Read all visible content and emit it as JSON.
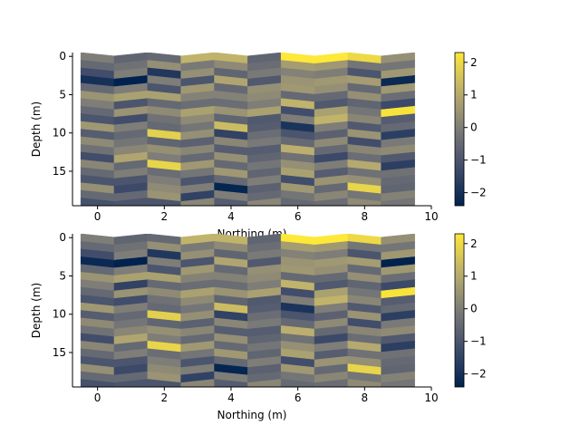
{
  "chart_data": [
    {
      "type": "heatmap",
      "title": "",
      "xlabel": "Northing (m)",
      "ylabel": "Depth (m)",
      "xlim": [
        -0.75,
        10
      ],
      "ylim": [
        19.5,
        -0.5
      ],
      "xticks": [
        "0",
        "2",
        "4",
        "6",
        "8",
        "10"
      ],
      "yticks": [
        "0",
        "5",
        "10",
        "15"
      ],
      "columns_x": [
        0,
        1,
        2,
        3,
        4,
        5,
        6,
        7,
        8,
        9
      ],
      "cell_depth_m": 1,
      "depth_rows": 20,
      "colormap": "cividis",
      "colorbar": {
        "min": -2.4,
        "max": 2.3,
        "ticks": [
          "2",
          "1",
          "0",
          "−1",
          "−2"
        ]
      },
      "grid": false,
      "values_by_column": [
        [
          0.0,
          -0.5,
          -1.2,
          -2.0,
          -0.5,
          0.5,
          0.0,
          -0.5,
          -1.0,
          0.6,
          -0.8,
          0.3,
          -0.3,
          -1.2,
          0.2,
          -0.5,
          -1.0,
          0.4,
          -0.5,
          -1.1
        ],
        [
          -0.6,
          -0.3,
          0.0,
          -2.4,
          0.0,
          0.8,
          -1.0,
          0.5,
          -1.2,
          0.0,
          -0.5,
          -0.2,
          0.2,
          0.9,
          -0.5,
          0.0,
          -1.0,
          -1.3,
          -0.5,
          -1.0
        ],
        [
          -0.5,
          0.4,
          -1.8,
          0.0,
          -1.0,
          0.8,
          -0.5,
          0.3,
          -0.3,
          -0.5,
          1.8,
          -0.6,
          0.4,
          0.0,
          1.9,
          -0.4,
          0.0,
          0.3,
          0.5,
          -1.0
        ],
        [
          1.2,
          -0.1,
          0.4,
          -1.0,
          0.6,
          0.1,
          -0.4,
          0.8,
          0.3,
          -0.2,
          0.4,
          -0.7,
          0.2,
          -0.5,
          0.6,
          -0.2,
          -1.0,
          0.0,
          -1.5,
          0.2
        ],
        [
          1.2,
          0.3,
          -0.6,
          0.9,
          -0.5,
          0.1,
          -0.4,
          0.5,
          -0.6,
          1.4,
          -1.5,
          0.2,
          -0.8,
          0.4,
          -0.5,
          0.6,
          -0.5,
          -2.3,
          0.0,
          -0.8
        ],
        [
          -0.6,
          -0.4,
          -0.1,
          -0.9,
          0.4,
          0.3,
          0.0,
          0.8,
          -0.9,
          -0.8,
          -0.4,
          -0.1,
          -0.8,
          -0.6,
          -0.2,
          -0.6,
          0.0,
          -0.7,
          -0.5,
          0.2
        ],
        [
          2.3,
          0.7,
          0.1,
          0.5,
          0.6,
          -0.5,
          1.2,
          -1.2,
          0.0,
          -1.9,
          -1.0,
          -0.5,
          1.1,
          -0.3,
          0.4,
          0.8,
          -1.2,
          0.6,
          -0.2,
          -0.5
        ],
        [
          2.3,
          0.6,
          0.0,
          0.6,
          0.4,
          -0.5,
          -0.9,
          0.8,
          1.2,
          0.0,
          -0.7,
          0.3,
          -0.5,
          -1.3,
          0.0,
          -0.8,
          0.5,
          -0.5,
          0.2,
          -0.4
        ],
        [
          2.0,
          -0.2,
          -1.0,
          0.7,
          -0.5,
          0.4,
          -0.6,
          -0.2,
          0.2,
          -0.9,
          0.5,
          -1.2,
          0.2,
          -0.4,
          1.0,
          -0.3,
          0.4,
          1.9,
          -0.2,
          0.3
        ],
        [
          0.4,
          -0.2,
          0.6,
          -2.2,
          0.6,
          -0.4,
          -1.3,
          2.2,
          -0.8,
          -0.5,
          -1.6,
          -0.1,
          0.3,
          -0.9,
          -1.6,
          -0.3,
          -0.5,
          -0.6,
          0.1,
          -0.2
        ]
      ]
    },
    {
      "type": "heatmap",
      "title": "",
      "xlabel": "Northing (m)",
      "ylabel": "Depth (m)",
      "xlim": [
        -0.75,
        10
      ],
      "ylim": [
        19.5,
        -0.5
      ],
      "xticks": [
        "0",
        "2",
        "4",
        "6",
        "8",
        "10"
      ],
      "yticks": [
        "0",
        "5",
        "10",
        "15"
      ],
      "columns_x": [
        0,
        1,
        2,
        3,
        4,
        5,
        6,
        7,
        8,
        9
      ],
      "cell_depth_m": 1,
      "depth_rows": 20,
      "colormap": "cividis",
      "colorbar": {
        "min": -2.4,
        "max": 2.3,
        "ticks": [
          "2",
          "1",
          "0",
          "−1",
          "−2"
        ]
      },
      "grid": false,
      "values_by_column": [
        [
          0.0,
          -0.5,
          -1.2,
          -2.2,
          -0.5,
          0.5,
          0.0,
          -0.5,
          -1.0,
          0.6,
          -0.8,
          0.3,
          -0.3,
          -1.2,
          0.2,
          -0.5,
          -1.0,
          0.4,
          -0.5,
          -1.1
        ],
        [
          -0.6,
          -0.3,
          0.0,
          -2.4,
          0.0,
          0.8,
          -1.5,
          0.5,
          -1.2,
          0.0,
          -0.5,
          -0.2,
          0.2,
          0.9,
          -0.5,
          0.0,
          -1.0,
          -1.3,
          -0.5,
          -1.0
        ],
        [
          -0.5,
          0.4,
          -1.8,
          0.0,
          -1.0,
          0.8,
          -0.5,
          0.3,
          -0.3,
          -0.5,
          1.8,
          -0.6,
          0.4,
          0.0,
          1.9,
          -0.4,
          0.0,
          0.3,
          0.5,
          -1.0
        ],
        [
          1.2,
          -0.1,
          0.4,
          -1.0,
          0.6,
          0.1,
          -0.4,
          0.8,
          0.3,
          -0.2,
          0.4,
          -0.7,
          0.2,
          -0.5,
          0.6,
          -0.2,
          -1.0,
          0.0,
          -1.5,
          0.2
        ],
        [
          1.2,
          0.3,
          -0.6,
          0.9,
          -0.5,
          0.1,
          -0.4,
          0.5,
          -0.6,
          1.4,
          -1.5,
          0.2,
          -0.8,
          0.4,
          -0.5,
          0.6,
          -0.5,
          -2.3,
          0.0,
          -0.8
        ],
        [
          -0.6,
          -0.4,
          -0.1,
          -0.9,
          0.4,
          0.3,
          0.0,
          0.8,
          -0.9,
          -0.8,
          -0.4,
          -0.1,
          -0.8,
          -0.6,
          -0.2,
          -0.6,
          0.0,
          -0.7,
          -0.5,
          0.2
        ],
        [
          2.3,
          0.7,
          0.1,
          0.5,
          0.6,
          -0.5,
          1.2,
          -1.2,
          0.0,
          -1.9,
          -1.0,
          -0.5,
          1.1,
          -0.3,
          0.4,
          0.8,
          -1.2,
          0.6,
          -0.2,
          -0.5
        ],
        [
          2.3,
          0.6,
          0.0,
          0.6,
          0.4,
          -0.5,
          -0.9,
          0.8,
          1.2,
          0.0,
          -0.7,
          0.3,
          -0.5,
          -1.3,
          0.0,
          -0.8,
          0.5,
          -0.5,
          0.2,
          -0.4
        ],
        [
          2.0,
          -0.2,
          -1.0,
          0.7,
          -0.5,
          0.4,
          -0.6,
          -0.2,
          0.2,
          -0.9,
          0.5,
          -1.2,
          0.2,
          -0.4,
          1.0,
          -0.3,
          0.4,
          1.9,
          -0.2,
          0.3
        ],
        [
          0.4,
          -0.2,
          0.6,
          -2.4,
          0.6,
          -0.4,
          -1.3,
          2.2,
          -0.8,
          -0.5,
          -1.6,
          -0.1,
          0.3,
          -0.9,
          -1.6,
          -0.3,
          -0.5,
          -0.6,
          0.1,
          -0.2
        ]
      ]
    }
  ]
}
